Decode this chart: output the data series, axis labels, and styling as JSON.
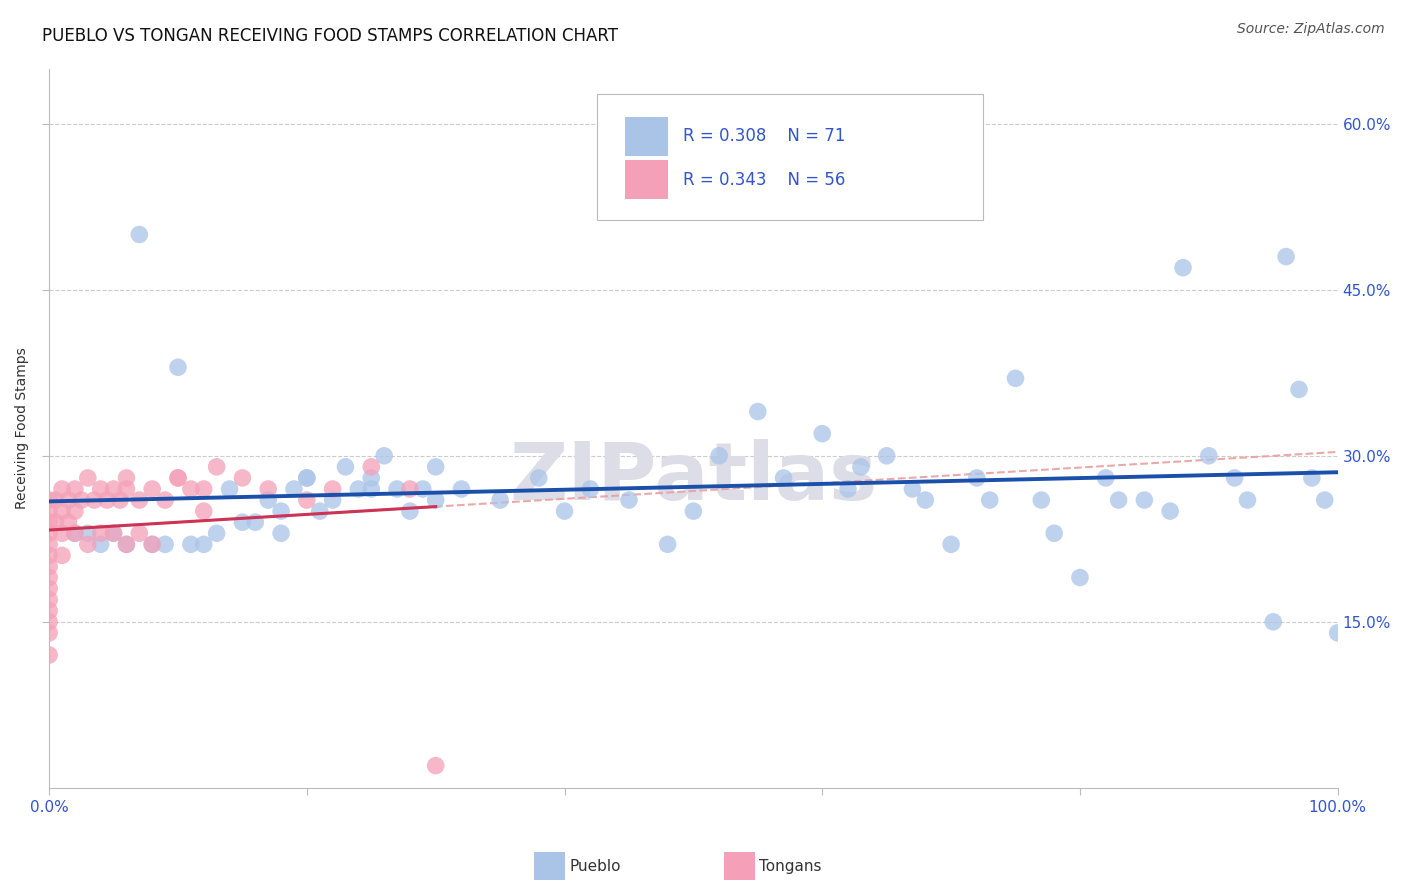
{
  "title": "PUEBLO VS TONGAN RECEIVING FOOD STAMPS CORRELATION CHART",
  "source": "Source: ZipAtlas.com",
  "ylabel": "Receiving Food Stamps",
  "xlim": [
    0,
    100
  ],
  "ylim": [
    0,
    65
  ],
  "yticks": [
    15,
    30,
    45,
    60
  ],
  "ytick_labels_right": [
    "15.0%",
    "30.0%",
    "45.0%",
    "60.0%"
  ],
  "xtick_labels": [
    "0.0%",
    "",
    "",
    "",
    "",
    "100.0%"
  ],
  "background_color": "#ffffff",
  "grid_color": "#cccccc",
  "pueblo_color": "#aac4e8",
  "tongan_color": "#f4a0b8",
  "pueblo_line_color": "#1a4faa",
  "tongan_line_color": "#cc3355",
  "dashed_line_color": "#e8a0a0",
  "pueblo_r": 0.308,
  "pueblo_n": 71,
  "tongan_r": 0.343,
  "tongan_n": 56,
  "legend_r_pueblo": "R = 0.308",
  "legend_n_pueblo": "N = 71",
  "legend_r_tongan": "R = 0.343",
  "legend_n_tongan": "N = 56",
  "watermark": "ZIPatlas",
  "watermark_color": "#dddde8",
  "title_fontsize": 12,
  "axis_label_fontsize": 10,
  "tick_fontsize": 11,
  "source_fontsize": 10,
  "legend_fontsize": 12,
  "pueblo_x": [
    7,
    10,
    14,
    16,
    17,
    18,
    18,
    19,
    20,
    21,
    22,
    23,
    24,
    25,
    26,
    27,
    28,
    29,
    30,
    32,
    35,
    38,
    40,
    42,
    45,
    48,
    50,
    52,
    55,
    57,
    60,
    62,
    63,
    65,
    67,
    68,
    70,
    72,
    73,
    75,
    77,
    78,
    80,
    82,
    83,
    85,
    87,
    88,
    90,
    92,
    93,
    95,
    96,
    97,
    98,
    99,
    100,
    2,
    3,
    4,
    5,
    6,
    8,
    9,
    11,
    12,
    13,
    15,
    20,
    25,
    30
  ],
  "pueblo_y": [
    50,
    38,
    27,
    24,
    26,
    25,
    23,
    27,
    28,
    25,
    26,
    29,
    27,
    28,
    30,
    27,
    25,
    27,
    29,
    27,
    26,
    28,
    25,
    27,
    26,
    22,
    25,
    30,
    34,
    28,
    32,
    27,
    29,
    30,
    27,
    26,
    22,
    28,
    26,
    37,
    26,
    23,
    19,
    28,
    26,
    26,
    25,
    47,
    30,
    28,
    26,
    15,
    48,
    36,
    28,
    26,
    14,
    23,
    23,
    22,
    23,
    22,
    22,
    22,
    22,
    22,
    23,
    24,
    28,
    27,
    26
  ],
  "tongan_x": [
    0,
    0,
    0,
    0,
    0,
    0,
    0,
    0,
    0,
    0,
    0,
    0,
    0,
    0,
    0.5,
    0.5,
    1,
    1,
    1,
    1,
    1.5,
    1.5,
    2,
    2,
    2,
    2.5,
    3,
    3,
    3.5,
    4,
    4,
    4.5,
    5,
    5,
    5.5,
    6,
    6,
    7,
    7,
    8,
    8,
    9,
    10,
    11,
    12,
    13,
    15,
    17,
    20,
    22,
    25,
    28,
    6,
    10,
    12,
    30
  ],
  "tongan_y": [
    26,
    25,
    24,
    23,
    22,
    21,
    20,
    19,
    18,
    17,
    16,
    15,
    14,
    12,
    26,
    24,
    27,
    25,
    23,
    21,
    26,
    24,
    27,
    25,
    23,
    26,
    28,
    22,
    26,
    27,
    23,
    26,
    27,
    23,
    26,
    27,
    22,
    26,
    23,
    27,
    22,
    26,
    28,
    27,
    25,
    29,
    28,
    27,
    26,
    27,
    29,
    27,
    28,
    28,
    27,
    2
  ]
}
